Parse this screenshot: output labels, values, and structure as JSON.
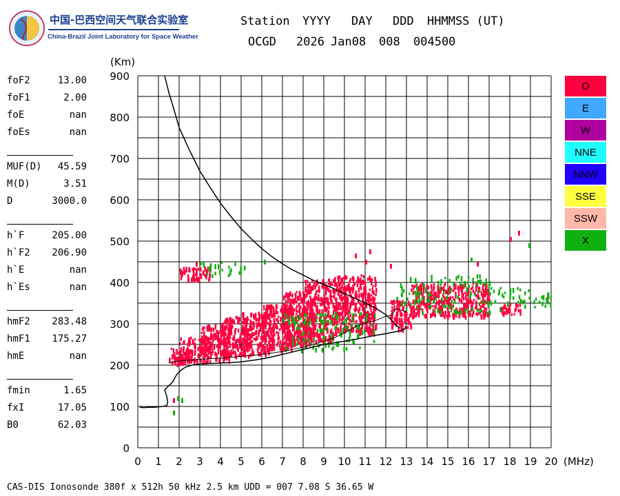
{
  "logo": {
    "name_cn": "中国-巴西空间天气联合实验室",
    "name_en": "China-Brazil Joint Laboratory for Space Weather"
  },
  "header": {
    "labels": [
      "Station",
      "YYYY",
      "DAY",
      "DDD",
      "HHMMSS (UT)"
    ],
    "values": [
      "OCGD",
      "2026",
      "Jan08",
      "008",
      "004500"
    ]
  },
  "params": {
    "group1": [
      {
        "key": "foF2",
        "value": "13.00"
      },
      {
        "key": "foF1",
        "value": "2.00"
      },
      {
        "key": "foE",
        "value": "nan"
      },
      {
        "key": "foEs",
        "value": "nan"
      }
    ],
    "group2": [
      {
        "key": "MUF(D)",
        "value": "45.59"
      },
      {
        "key": "M(D)",
        "value": "3.51"
      },
      {
        "key": "D",
        "value": "3000.0"
      }
    ],
    "group3": [
      {
        "key": "h`F",
        "value": "205.00"
      },
      {
        "key": "h`F2",
        "value": "206.90"
      },
      {
        "key": "h`E",
        "value": "nan"
      },
      {
        "key": "h`Es",
        "value": "nan"
      }
    ],
    "group4": [
      {
        "key": "hmF2",
        "value": "283.48"
      },
      {
        "key": "hmF1",
        "value": "175.27"
      },
      {
        "key": "hmE",
        "value": "nan"
      }
    ],
    "group5": [
      {
        "key": "fmin",
        "value": "1.65"
      },
      {
        "key": "fxI",
        "value": "17.05"
      },
      {
        "key": "B0",
        "value": "62.03"
      }
    ]
  },
  "legend": [
    {
      "label": "O",
      "color": "#ff0040"
    },
    {
      "label": "E",
      "color": "#40a8ff"
    },
    {
      "label": "W",
      "color": "#b000a0"
    },
    {
      "label": "NNE",
      "color": "#20ffff"
    },
    {
      "label": "NNW",
      "color": "#2000ff"
    },
    {
      "label": "SSE",
      "color": "#ffff40"
    },
    {
      "label": "SSW",
      "color": "#ffb8a8"
    },
    {
      "label": "X",
      "color": "#10b010"
    }
  ],
  "footer": "CAS-DIS Ionosonde 380f x 512h 50 kHz 2.5 km UDD = 007 7.08 S 36.65 W",
  "chart_data": {
    "type": "scatter",
    "xlabel": "(MHz)",
    "ylabel": "(Km)",
    "xlim": [
      0,
      20
    ],
    "ylim": [
      0,
      900
    ],
    "xticks": [
      0,
      1,
      2,
      3,
      4,
      5,
      6,
      7,
      8,
      9,
      10,
      11,
      12,
      13,
      14,
      15,
      16,
      17,
      18,
      19,
      20
    ],
    "yticks": [
      0,
      100,
      200,
      300,
      400,
      500,
      600,
      700,
      800,
      900
    ],
    "grid": true,
    "legend_position": "right",
    "series": [
      {
        "name": "O",
        "color": "#ff0040",
        "regions": [
          {
            "x": [
              1.5,
              2.6
            ],
            "y": [
              205,
              245
            ]
          },
          {
            "x": [
              2.0,
              3.5
            ],
            "y": [
              210,
              270
            ]
          },
          {
            "x": [
              3.0,
              4.5
            ],
            "y": [
              215,
              300
            ]
          },
          {
            "x": [
              4.0,
              5.5
            ],
            "y": [
              225,
              320
            ]
          },
          {
            "x": [
              5.0,
              6.5
            ],
            "y": [
              230,
              330
            ]
          },
          {
            "x": [
              6.0,
              7.5
            ],
            "y": [
              240,
              350
            ]
          },
          {
            "x": [
              7.0,
              8.5
            ],
            "y": [
              250,
              380
            ]
          },
          {
            "x": [
              8.0,
              9.5
            ],
            "y": [
              260,
              410
            ]
          },
          {
            "x": [
              9.5,
              11.5
            ],
            "y": [
              280,
              420
            ]
          },
          {
            "x": [
              12.2,
              13.2
            ],
            "y": [
              290,
              360
            ]
          },
          {
            "x": [
              13.2,
              17.0
            ],
            "y": [
              320,
              400
            ]
          },
          {
            "x": [
              2.0,
              3.5
            ],
            "y": [
              410,
              440
            ]
          },
          {
            "x": [
              17.5,
              18.5
            ],
            "y": [
              325,
              350
            ]
          }
        ],
        "points": [
          {
            "x": 18.0,
            "y": 510
          },
          {
            "x": 18.4,
            "y": 525
          },
          {
            "x": 18.9,
            "y": 495
          },
          {
            "x": 10.5,
            "y": 470
          },
          {
            "x": 11.2,
            "y": 480
          },
          {
            "x": 11.0,
            "y": 455
          },
          {
            "x": 2.8,
            "y": 450
          },
          {
            "x": 12.2,
            "y": 445
          },
          {
            "x": 16.4,
            "y": 450
          },
          {
            "x": 19.8,
            "y": 370
          },
          {
            "x": 1.7,
            "y": 120
          }
        ]
      },
      {
        "name": "X",
        "color": "#10b010",
        "regions": [
          {
            "x": [
              3.0,
              5.4
            ],
            "y": [
              420,
              455
            ]
          },
          {
            "x": [
              7.0,
              11.5
            ],
            "y": [
              240,
              330
            ]
          },
          {
            "x": [
              12.5,
              17.0
            ],
            "y": [
              330,
              420
            ]
          },
          {
            "x": [
              17.0,
              20.0
            ],
            "y": [
              340,
              390
            ]
          }
        ],
        "points": [
          {
            "x": 1.7,
            "y": 90
          },
          {
            "x": 1.9,
            "y": 125
          },
          {
            "x": 2.1,
            "y": 120
          },
          {
            "x": 6.1,
            "y": 455
          },
          {
            "x": 18.9,
            "y": 495
          },
          {
            "x": 16.1,
            "y": 460
          }
        ]
      }
    ],
    "profiles": [
      {
        "name": "trace",
        "points": [
          [
            0.1,
            98
          ],
          [
            0.3,
            97
          ],
          [
            0.5,
            98
          ],
          [
            0.8,
            98
          ],
          [
            1.0,
            99
          ],
          [
            1.2,
            100
          ],
          [
            1.3,
            101
          ],
          [
            1.4,
            102
          ],
          [
            1.45,
            110
          ],
          [
            1.4,
            125
          ],
          [
            1.3,
            140
          ],
          [
            1.5,
            150
          ],
          [
            1.7,
            160
          ],
          [
            1.8,
            170
          ],
          [
            1.9,
            178
          ],
          [
            2.1,
            188
          ],
          [
            2.3,
            195
          ],
          [
            2.6,
            200
          ],
          [
            3.0,
            203
          ],
          [
            3.5,
            204
          ],
          [
            4.0,
            205
          ],
          [
            4.5,
            206
          ],
          [
            5.0,
            208
          ],
          [
            5.5,
            211
          ],
          [
            6.0,
            215
          ],
          [
            6.5,
            220
          ],
          [
            7.0,
            226
          ],
          [
            7.5,
            232
          ],
          [
            8.0,
            238
          ],
          [
            8.5,
            244
          ],
          [
            9.0,
            250
          ],
          [
            9.5,
            254
          ],
          [
            10.0,
            258
          ],
          [
            10.5,
            262
          ],
          [
            11.0,
            267
          ],
          [
            11.5,
            272
          ],
          [
            12.0,
            276
          ],
          [
            12.4,
            280
          ],
          [
            12.7,
            283
          ],
          [
            12.9,
            287
          ],
          [
            13.0,
            292
          ]
        ]
      },
      {
        "name": "profile",
        "points": [
          [
            1.3,
            900
          ],
          [
            1.5,
            860
          ],
          [
            1.8,
            810
          ],
          [
            2.0,
            775
          ],
          [
            2.5,
            720
          ],
          [
            3.0,
            670
          ],
          [
            3.5,
            630
          ],
          [
            4.0,
            592
          ],
          [
            4.5,
            560
          ],
          [
            5.0,
            530
          ],
          [
            5.5,
            505
          ],
          [
            6.0,
            482
          ],
          [
            6.5,
            462
          ],
          [
            7.0,
            445
          ],
          [
            7.5,
            430
          ],
          [
            8.0,
            418
          ],
          [
            8.5,
            405
          ],
          [
            9.0,
            395
          ],
          [
            9.5,
            385
          ],
          [
            10.0,
            373
          ],
          [
            10.5,
            362
          ],
          [
            11.0,
            350
          ],
          [
            11.5,
            338
          ],
          [
            12.0,
            322
          ],
          [
            12.3,
            308
          ],
          [
            12.5,
            296
          ],
          [
            12.7,
            290
          ]
        ]
      },
      {
        "name": "inner",
        "points": [
          [
            1.5,
            205
          ],
          [
            2.0,
            210
          ],
          [
            2.5,
            212
          ],
          [
            3.0,
            214
          ],
          [
            4.0,
            217
          ],
          [
            5.0,
            221
          ],
          [
            6.0,
            226
          ],
          [
            7.0,
            233
          ],
          [
            8.0,
            243
          ],
          [
            9.0,
            258
          ],
          [
            9.5,
            266
          ],
          [
            10.0,
            278
          ],
          [
            10.5,
            292
          ],
          [
            11.0,
            302
          ],
          [
            11.5,
            308
          ],
          [
            12.0,
            318
          ],
          [
            12.3,
            322
          ],
          [
            12.5,
            337
          ],
          [
            12.8,
            332
          ],
          [
            13.0,
            328
          ]
        ]
      }
    ]
  }
}
